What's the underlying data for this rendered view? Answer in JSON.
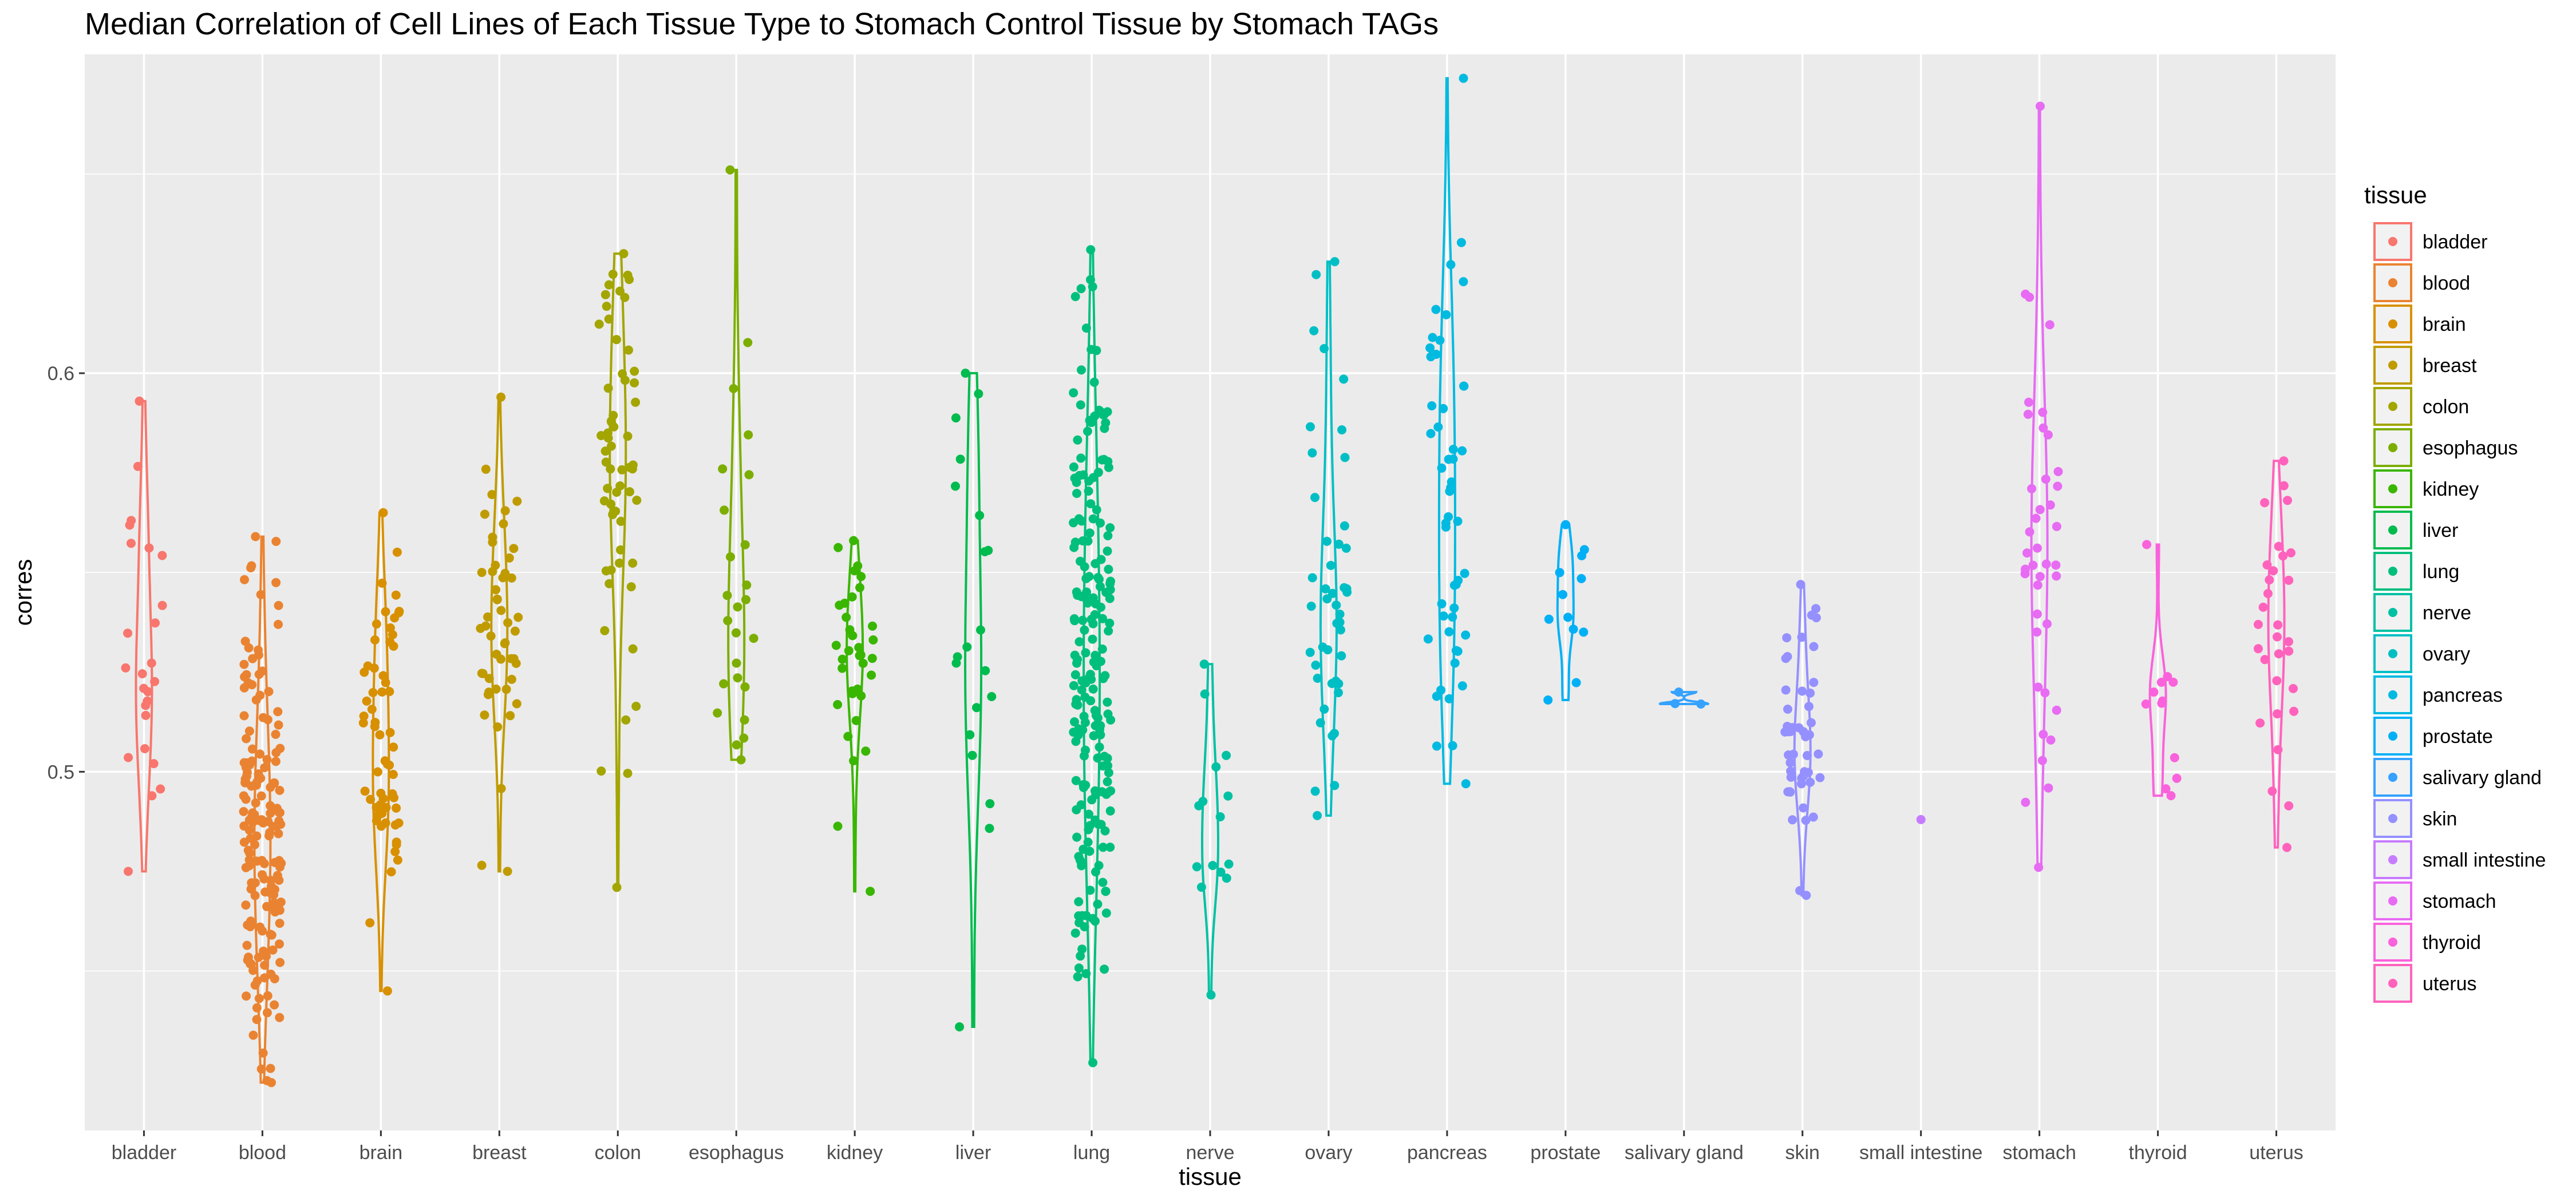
{
  "chart_data": {
    "type": "scatter",
    "subtype": "violin-with-jittered-points",
    "title": "Median Correlation of Cell Lines of Each Tissue Type to Stomach Control Tissue by Stomach TAGs",
    "xlabel": "tissue",
    "ylabel": "corres",
    "ylim": [
      0.41,
      0.68
    ],
    "yticks": [
      0.5,
      0.6
    ],
    "ytick_labels": [
      "0.5",
      "0.6"
    ],
    "grid": true,
    "legend_title": "tissue",
    "legend_position": "right",
    "categories": [
      "bladder",
      "blood",
      "brain",
      "breast",
      "colon",
      "esophagus",
      "kidney",
      "liver",
      "lung",
      "nerve",
      "ovary",
      "pancreas",
      "prostate",
      "salivary gland",
      "skin",
      "small intestine",
      "stomach",
      "thyroid",
      "uterus"
    ],
    "colors": [
      "#F8766D",
      "#EA8331",
      "#D89000",
      "#C09B00",
      "#A3A500",
      "#7CAE00",
      "#39B600",
      "#00BB4E",
      "#00BF7D",
      "#00C1A3",
      "#00BFC4",
      "#00BAE0",
      "#00B0F6",
      "#35A2FF",
      "#9590FF",
      "#C77CFF",
      "#E76BF3",
      "#FA62DB",
      "#FF62BC"
    ],
    "series": [
      {
        "name": "bladder",
        "min": 0.475,
        "max": 0.593,
        "median": 0.532,
        "n": 25
      },
      {
        "name": "blood",
        "min": 0.422,
        "max": 0.559,
        "median": 0.478,
        "n": 170
      },
      {
        "name": "brain",
        "min": 0.445,
        "max": 0.565,
        "median": 0.515,
        "n": 60
      },
      {
        "name": "breast",
        "min": 0.475,
        "max": 0.594,
        "median": 0.538,
        "n": 50
      },
      {
        "name": "colon",
        "min": 0.471,
        "max": 0.63,
        "median": 0.578,
        "n": 60
      },
      {
        "name": "esophagus",
        "min": 0.503,
        "max": 0.651,
        "median": 0.536,
        "n": 25
      },
      {
        "name": "kidney",
        "min": 0.47,
        "max": 0.558,
        "median": 0.535,
        "n": 35
      },
      {
        "name": "liver",
        "min": 0.436,
        "max": 0.6,
        "median": 0.545,
        "n": 20
      },
      {
        "name": "lung",
        "min": 0.427,
        "max": 0.631,
        "median": 0.53,
        "n": 200
      },
      {
        "name": "nerve",
        "min": 0.444,
        "max": 0.527,
        "median": 0.49,
        "n": 15
      },
      {
        "name": "ovary",
        "min": 0.489,
        "max": 0.628,
        "median": 0.545,
        "n": 45
      },
      {
        "name": "pancreas",
        "min": 0.497,
        "max": 0.674,
        "median": 0.57,
        "n": 50
      },
      {
        "name": "prostate",
        "min": 0.518,
        "max": 0.562,
        "median": 0.543,
        "n": 12
      },
      {
        "name": "salivary gland",
        "min": 0.517,
        "max": 0.52,
        "median": 0.518,
        "n": 3
      },
      {
        "name": "skin",
        "min": 0.469,
        "max": 0.547,
        "median": 0.51,
        "n": 50
      },
      {
        "name": "small intestine",
        "min": 0.488,
        "max": 0.488,
        "median": 0.488,
        "n": 1
      },
      {
        "name": "stomach",
        "min": 0.476,
        "max": 0.667,
        "median": 0.535,
        "n": 40
      },
      {
        "name": "thyroid",
        "min": 0.494,
        "max": 0.557,
        "median": 0.52,
        "n": 12
      },
      {
        "name": "uterus",
        "min": 0.481,
        "max": 0.578,
        "median": 0.535,
        "n": 30
      }
    ]
  }
}
